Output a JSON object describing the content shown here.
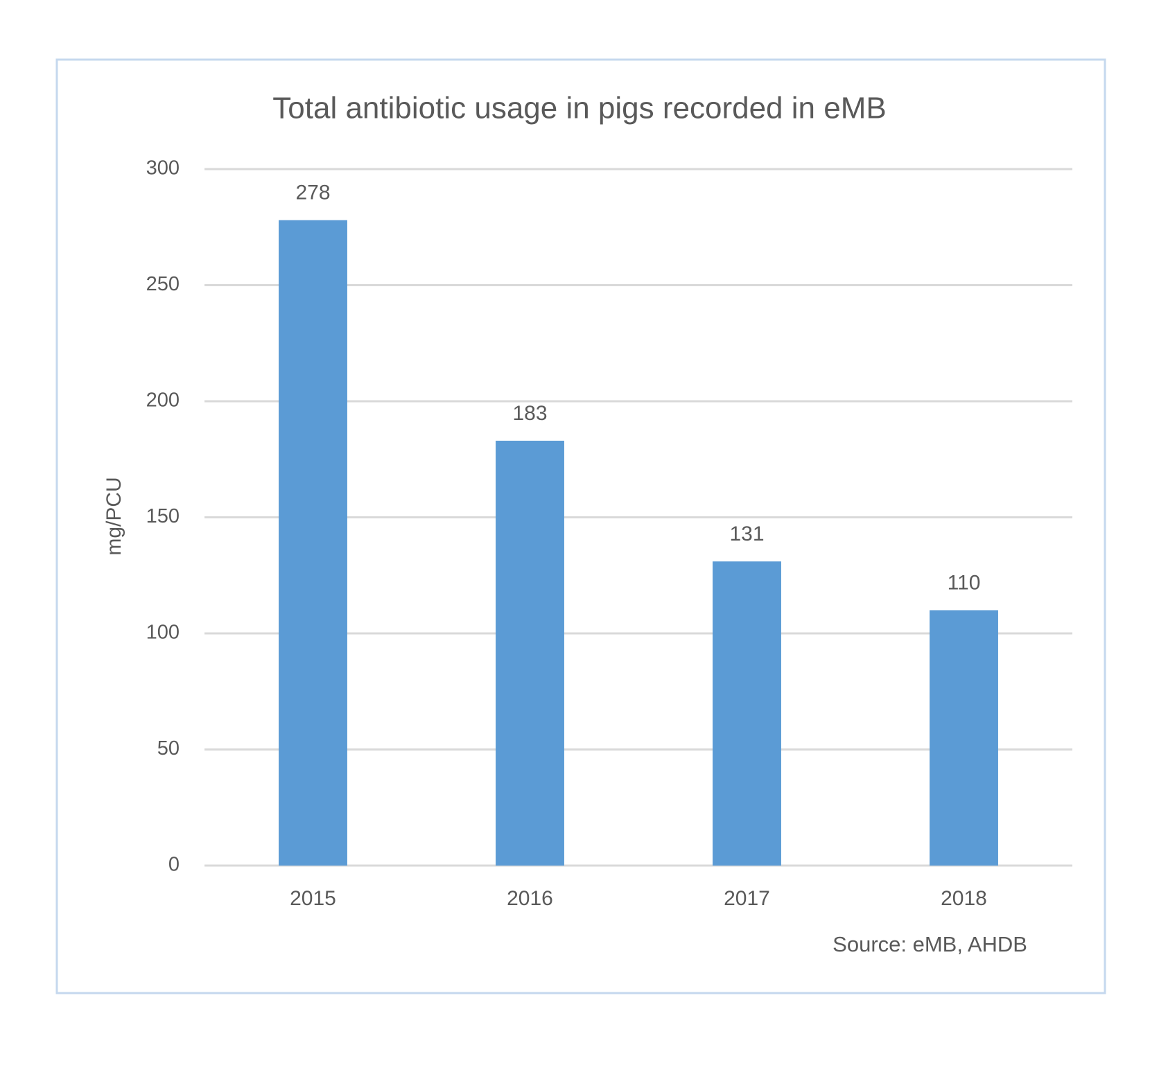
{
  "chart_data": {
    "type": "bar",
    "title": "Total antibiotic usage in pigs recorded in eMB",
    "y_label": "mg/PCU",
    "source": "Source: eMB, AHDB",
    "categories": [
      "2015",
      "2016",
      "2017",
      "2018"
    ],
    "values": [
      278,
      183,
      131,
      110
    ],
    "color": "#5b9bd5",
    "ylim": [
      0,
      300
    ],
    "yticks": [
      0,
      50,
      100,
      150,
      200,
      250,
      300
    ],
    "grid": true,
    "data_labels": true
  }
}
